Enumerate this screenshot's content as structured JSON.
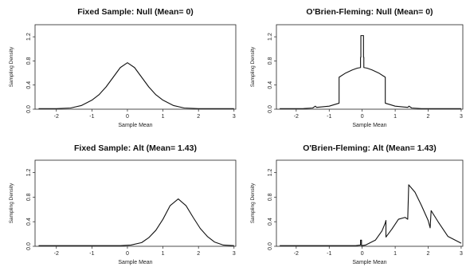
{
  "chart_data": [
    {
      "type": "line",
      "title": "Fixed Sample: Null (Mean= 0)",
      "xlabel": "Sample Mean",
      "ylabel": "Sampling Density",
      "xlim": [
        -2.6,
        3.05
      ],
      "ylim": [
        0,
        1.4
      ],
      "xticks": [
        "-2",
        "-1",
        "0",
        "1",
        "2",
        "3"
      ],
      "yticks": [
        "0.0",
        "0.4",
        "0.8",
        "1.2"
      ],
      "series": [
        {
          "x": [
            -2.5,
            -2.0,
            -1.6,
            -1.3,
            -1.0,
            -0.8,
            -0.6,
            -0.4,
            -0.2,
            0.0,
            0.2,
            0.4,
            0.6,
            0.8,
            1.0,
            1.3,
            1.6,
            2.0,
            2.5,
            3.0
          ],
          "values": [
            0.01,
            0.01,
            0.02,
            0.06,
            0.15,
            0.24,
            0.37,
            0.53,
            0.69,
            0.77,
            0.69,
            0.53,
            0.37,
            0.24,
            0.15,
            0.06,
            0.02,
            0.01,
            0.01,
            0.01
          ]
        }
      ]
    },
    {
      "type": "line",
      "title": "O'Brien-Fleming: Null (Mean= 0)",
      "xlabel": "Sample Mean",
      "ylabel": "Sampling Density",
      "xlim": [
        -2.6,
        3.05
      ],
      "ylim": [
        0,
        1.4
      ],
      "xticks": [
        "-2",
        "-1",
        "0",
        "1",
        "2",
        "3"
      ],
      "yticks": [
        "0.0",
        "0.4",
        "0.8",
        "1.2"
      ],
      "series": [
        {
          "x": [
            -2.5,
            -1.8,
            -1.5,
            -1.42,
            -1.38,
            -1.0,
            -0.7,
            -0.7,
            -0.5,
            -0.3,
            -0.15,
            -0.05,
            -0.05,
            -0.04,
            -0.04,
            0.0,
            0.04,
            0.04,
            0.05,
            0.05,
            0.15,
            0.3,
            0.5,
            0.7,
            0.7,
            1.0,
            1.38,
            1.42,
            1.5,
            1.8,
            2.5,
            3.0
          ],
          "values": [
            0.01,
            0.01,
            0.02,
            0.05,
            0.03,
            0.05,
            0.1,
            0.53,
            0.6,
            0.65,
            0.68,
            0.69,
            0.86,
            0.86,
            1.22,
            1.22,
            1.22,
            0.86,
            0.86,
            0.69,
            0.68,
            0.65,
            0.6,
            0.53,
            0.1,
            0.05,
            0.03,
            0.05,
            0.02,
            0.01,
            0.01,
            0.01
          ]
        }
      ]
    },
    {
      "type": "line",
      "title": "Fixed Sample: Alt (Mean= 1.43)",
      "xlabel": "Sample Mean",
      "ylabel": "Sampling Density",
      "xlim": [
        -2.6,
        3.05
      ],
      "ylim": [
        0,
        1.4
      ],
      "xticks": [
        "-2",
        "-1",
        "0",
        "1",
        "2",
        "3"
      ],
      "yticks": [
        "0.0",
        "0.4",
        "0.8",
        "1.2"
      ],
      "series": [
        {
          "x": [
            -2.5,
            -1.0,
            -0.2,
            0.1,
            0.4,
            0.6,
            0.8,
            1.0,
            1.2,
            1.43,
            1.65,
            1.85,
            2.05,
            2.25,
            2.45,
            2.7,
            3.0
          ],
          "values": [
            0.01,
            0.01,
            0.01,
            0.02,
            0.06,
            0.14,
            0.26,
            0.44,
            0.66,
            0.77,
            0.66,
            0.47,
            0.29,
            0.16,
            0.07,
            0.02,
            0.01
          ]
        }
      ]
    },
    {
      "type": "line",
      "title": "O'Brien-Fleming: Alt (Mean= 1.43)",
      "xlabel": "Sample Mean",
      "ylabel": "Sampling Density",
      "xlim": [
        -2.6,
        3.05
      ],
      "ylim": [
        0,
        1.4
      ],
      "xticks": [
        "-2",
        "-1",
        "0",
        "1",
        "2",
        "3"
      ],
      "yticks": [
        "0.0",
        "0.4",
        "0.8",
        "1.2"
      ],
      "series": [
        {
          "x": [
            -2.5,
            -1.0,
            -0.2,
            -0.05,
            -0.05,
            -0.02,
            -0.02,
            0.1,
            0.4,
            0.6,
            0.7,
            0.72,
            0.72,
            0.9,
            1.1,
            1.3,
            1.38,
            1.41,
            1.41,
            1.6,
            1.8,
            2.0,
            2.06,
            2.09,
            2.09,
            2.3,
            2.6,
            3.0
          ],
          "values": [
            0.01,
            0.01,
            0.01,
            0.02,
            0.1,
            0.1,
            0.01,
            0.02,
            0.1,
            0.25,
            0.38,
            0.42,
            0.15,
            0.28,
            0.44,
            0.47,
            0.44,
            1.0,
            1.0,
            0.88,
            0.66,
            0.42,
            0.3,
            0.58,
            0.58,
            0.4,
            0.16,
            0.05
          ]
        }
      ]
    }
  ]
}
